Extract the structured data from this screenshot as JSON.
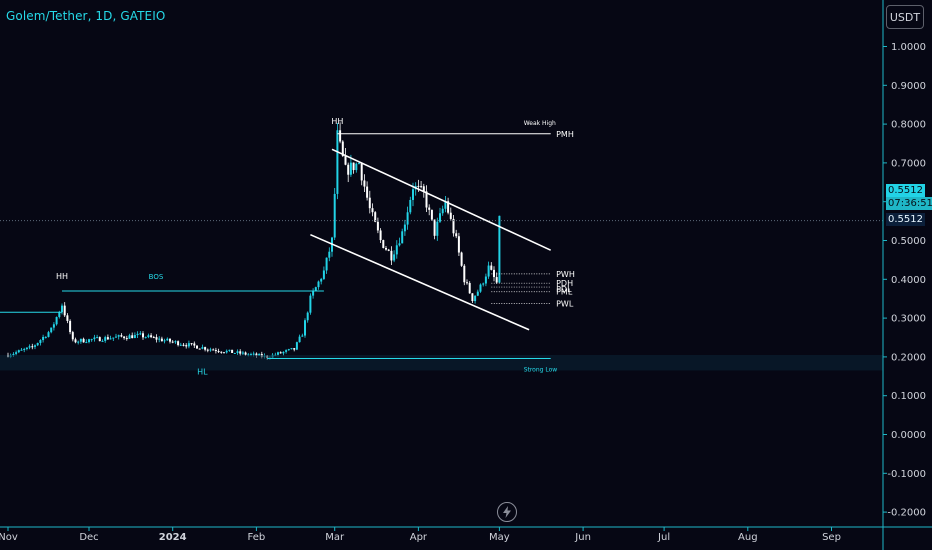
{
  "header": {
    "title": "Golem/Tether, 1D, GATEIO"
  },
  "toolbar": {
    "currency": "USDT"
  },
  "price_tags": {
    "last_price": "0.5512",
    "countdown": "07:36:51",
    "line_price": "0.5512"
  },
  "colors": {
    "background": "#060714",
    "axis": "#1fb7c7",
    "text": "#d1d4dc",
    "bull": "#22d3e6",
    "bear": "#ffffff",
    "accent": "#26d9e8"
  },
  "chart_data": {
    "type": "candlestick",
    "title": "Golem/Tether, 1D, GATEIO",
    "xlabel": "",
    "ylabel": "",
    "ylim": [
      -0.23,
      1.1
    ],
    "y_ticks": [
      "1.0000",
      "0.9000",
      "0.8000",
      "0.7000",
      "0.6000",
      "0.5000",
      "0.4000",
      "0.3000",
      "0.2000",
      "0.1000",
      "0.0000",
      "-0.1000",
      "-0.2000"
    ],
    "x_ticks": [
      "Nov",
      "Dec",
      "2024",
      "Feb",
      "Mar",
      "Apr",
      "May",
      "Jun",
      "Jul",
      "Aug",
      "Sep"
    ],
    "x_tick_dates": [
      "2023-11-01",
      "2023-12-01",
      "2024-01-01",
      "2024-02-01",
      "2024-03-01",
      "2024-04-01",
      "2024-05-01",
      "2024-06-01",
      "2024-07-01",
      "2024-08-01",
      "2024-09-01"
    ],
    "series_anchor_points": [
      [
        "2023-11-01",
        0.205
      ],
      [
        "2023-11-10",
        0.225
      ],
      [
        "2023-11-17",
        0.27
      ],
      [
        "2023-11-21",
        0.335
      ],
      [
        "2023-11-25",
        0.24
      ],
      [
        "2023-12-10",
        0.25
      ],
      [
        "2023-12-20",
        0.255
      ],
      [
        "2023-12-31",
        0.24
      ],
      [
        "2024-01-15",
        0.22
      ],
      [
        "2024-01-25",
        0.21
      ],
      [
        "2024-02-05",
        0.2
      ],
      [
        "2024-02-15",
        0.22
      ],
      [
        "2024-02-18",
        0.26
      ],
      [
        "2024-02-21",
        0.35
      ],
      [
        "2024-02-26",
        0.42
      ],
      [
        "2024-02-29",
        0.5
      ],
      [
        "2024-03-01",
        0.62
      ],
      [
        "2024-03-02",
        0.77
      ],
      [
        "2024-03-05",
        0.68
      ],
      [
        "2024-03-10",
        0.7
      ],
      [
        "2024-03-14",
        0.58
      ],
      [
        "2024-03-18",
        0.5
      ],
      [
        "2024-03-22",
        0.46
      ],
      [
        "2024-03-26",
        0.52
      ],
      [
        "2024-03-30",
        0.64
      ],
      [
        "2024-04-03",
        0.62
      ],
      [
        "2024-04-07",
        0.52
      ],
      [
        "2024-04-11",
        0.6
      ],
      [
        "2024-04-15",
        0.5
      ],
      [
        "2024-04-18",
        0.4
      ],
      [
        "2024-04-21",
        0.35
      ],
      [
        "2024-04-24",
        0.38
      ],
      [
        "2024-04-27",
        0.43
      ],
      [
        "2024-04-30",
        0.39
      ],
      [
        "2024-05-01",
        0.55
      ]
    ],
    "levels": [
      {
        "label": "PMH",
        "value": 0.775
      },
      {
        "label": "PWH",
        "value": 0.414
      },
      {
        "label": "PDH",
        "value": 0.39
      },
      {
        "label": "PDL",
        "value": 0.38
      },
      {
        "label": "PML",
        "value": 0.368
      },
      {
        "label": "PWL",
        "value": 0.338
      },
      {
        "label": "BOS",
        "value": 0.37
      },
      {
        "label": "Strong Low",
        "value": 0.165
      }
    ],
    "annotations": [
      "HH",
      "HH",
      "BOS",
      "HL",
      "Weak High",
      "Strong Low"
    ],
    "last_price": 0.5512
  }
}
